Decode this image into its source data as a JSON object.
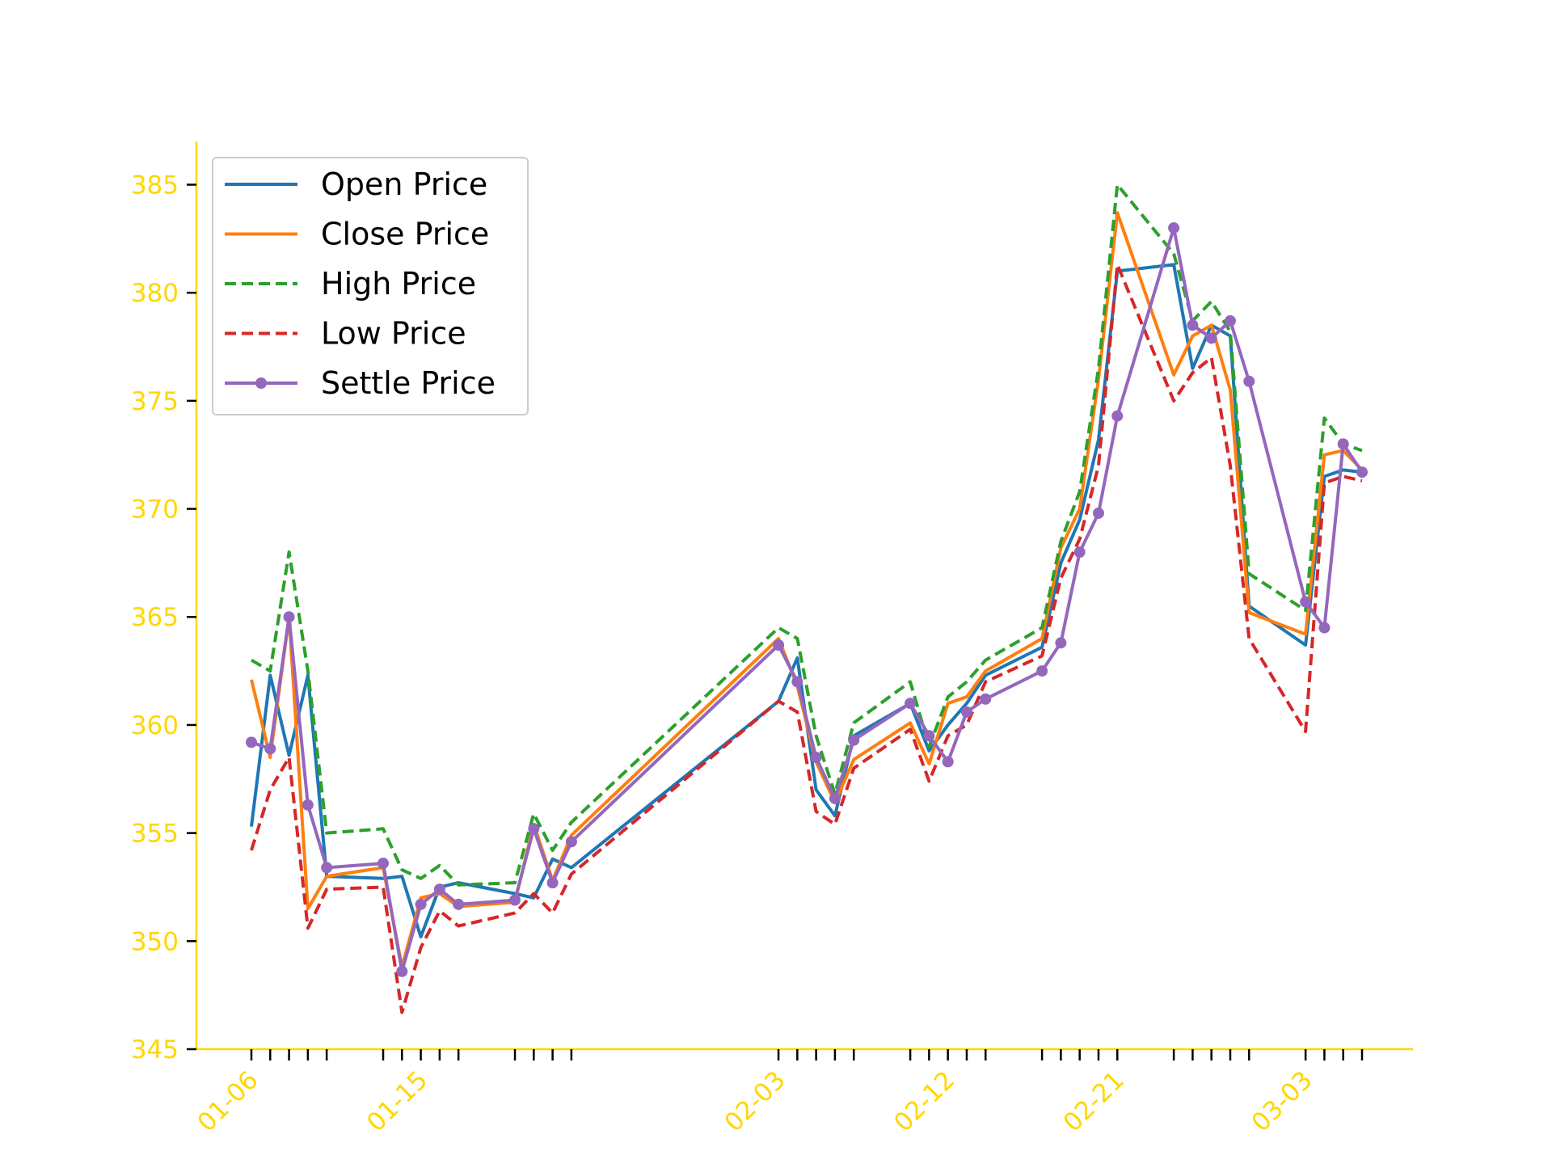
{
  "chart_data": {
    "type": "line",
    "title": "",
    "xlabel": "",
    "ylabel": "",
    "ylim": [
      345,
      387
    ],
    "yticks": [
      345,
      350,
      355,
      360,
      365,
      370,
      375,
      380,
      385
    ],
    "x_axis_type": "date",
    "year": "",
    "x": [
      "01-06",
      "01-07",
      "01-08",
      "01-09",
      "01-10",
      "01-13",
      "01-14",
      "01-15",
      "01-16",
      "01-17",
      "01-20",
      "01-21",
      "01-22",
      "01-23",
      "02-03",
      "02-04",
      "02-05",
      "02-06",
      "02-07",
      "02-10",
      "02-11",
      "02-12",
      "02-13",
      "02-14",
      "02-17",
      "02-18",
      "02-19",
      "02-20",
      "02-21",
      "02-24",
      "02-25",
      "02-26",
      "02-27",
      "02-28",
      "03-03",
      "03-04",
      "03-05",
      "03-06"
    ],
    "xtick_labels": [
      "01-06",
      "01-15",
      "02-03",
      "02-12",
      "02-21",
      "03-03"
    ],
    "grid": false,
    "legend_position": "top-left",
    "axis_color": "#FFD700",
    "series": [
      {
        "name": "Open Price",
        "color": "#1f77b4",
        "style": "solid",
        "marker": false,
        "values": [
          355.3,
          362.3,
          358.6,
          362.3,
          353.0,
          352.9,
          353.0,
          350.2,
          352.5,
          352.7,
          352.2,
          352.0,
          353.8,
          353.4,
          361.1,
          363.1,
          357.0,
          355.8,
          359.5,
          361.0,
          358.8,
          360.0,
          361.0,
          362.3,
          363.6,
          367.5,
          369.5,
          373.2,
          381.0,
          381.3,
          376.5,
          378.5,
          378.0,
          365.5,
          363.7,
          371.5,
          371.8,
          371.7
        ]
      },
      {
        "name": "Close Price",
        "color": "#ff7f0e",
        "style": "solid",
        "marker": false,
        "values": [
          362.1,
          358.5,
          365.0,
          351.5,
          353.0,
          353.4,
          348.8,
          352.0,
          352.2,
          351.6,
          351.8,
          355.4,
          352.8,
          354.9,
          364.0,
          361.8,
          358.3,
          356.4,
          358.4,
          360.1,
          358.2,
          361.0,
          361.3,
          362.5,
          364.0,
          368.2,
          370.0,
          376.0,
          383.7,
          376.2,
          378.0,
          378.5,
          375.5,
          365.2,
          364.2,
          372.5,
          372.7,
          371.8
        ]
      },
      {
        "name": "High Price",
        "color": "#2ca02c",
        "style": "dashed",
        "marker": false,
        "values": [
          363.0,
          362.5,
          368.0,
          362.5,
          355.0,
          355.2,
          353.3,
          352.9,
          353.5,
          352.6,
          352.7,
          355.9,
          354.2,
          355.5,
          364.5,
          364.0,
          359.5,
          356.8,
          360.1,
          362.0,
          359.0,
          361.3,
          362.0,
          363.0,
          364.5,
          368.5,
          370.8,
          376.5,
          385.0,
          381.8,
          378.7,
          379.6,
          378.2,
          367.0,
          365.3,
          374.2,
          373.0,
          372.7
        ]
      },
      {
        "name": "Low Price",
        "color": "#d62728",
        "style": "dashed",
        "marker": false,
        "values": [
          354.2,
          357.0,
          358.5,
          350.6,
          352.4,
          352.5,
          346.7,
          349.7,
          351.4,
          350.7,
          351.3,
          352.2,
          351.3,
          353.1,
          361.1,
          360.6,
          356.0,
          355.4,
          358.0,
          359.8,
          357.4,
          359.5,
          360.0,
          362.0,
          363.2,
          366.8,
          368.6,
          372.0,
          381.3,
          375.0,
          376.3,
          377.0,
          372.0,
          364.0,
          359.7,
          371.2,
          371.5,
          371.3
        ]
      },
      {
        "name": "Settle Price",
        "color": "#9467bd",
        "style": "solid",
        "marker": true,
        "values": [
          359.2,
          358.9,
          365.0,
          356.3,
          353.4,
          353.6,
          348.6,
          351.7,
          352.4,
          351.7,
          351.9,
          355.2,
          352.7,
          354.6,
          363.7,
          362.0,
          358.5,
          356.6,
          359.3,
          361.0,
          359.5,
          358.3,
          360.6,
          361.2,
          362.5,
          363.8,
          368.0,
          369.8,
          374.3,
          383.0,
          378.5,
          377.9,
          378.7,
          375.9,
          365.7,
          364.5,
          373.0,
          371.7
        ]
      }
    ]
  }
}
